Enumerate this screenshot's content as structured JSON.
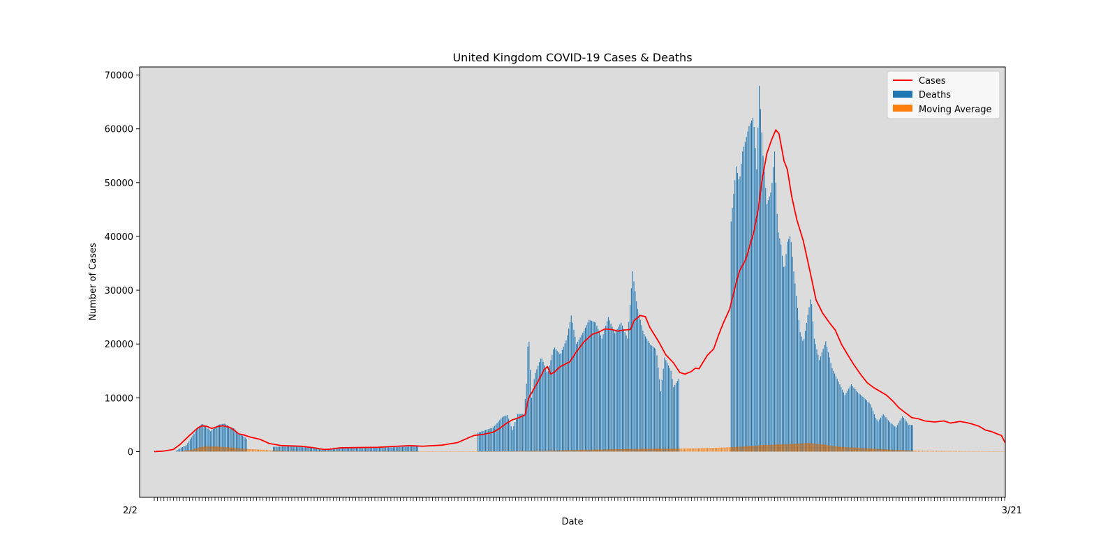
{
  "chart_data": {
    "type": "bar",
    "title": "United Kingdom COVID-19 Cases & Deaths",
    "xlabel": "Date",
    "ylabel": "Number of Cases",
    "ylim": [
      -8500,
      71500
    ],
    "yticks": [
      0,
      10000,
      20000,
      30000,
      40000,
      50000,
      60000,
      70000
    ],
    "x_tick_labels_visible": [
      "2/2",
      "3/21"
    ],
    "grid": false,
    "legend_position": "top-right",
    "background_color": "#dcdcdc",
    "series": [
      {
        "name": "Cases",
        "kind": "line",
        "color": "#ff0000",
        "keypoints": [
          [
            0,
            0
          ],
          [
            15,
            100
          ],
          [
            30,
            400
          ],
          [
            40,
            1300
          ],
          [
            55,
            3000
          ],
          [
            68,
            4400
          ],
          [
            75,
            4800
          ],
          [
            82,
            4700
          ],
          [
            90,
            4300
          ],
          [
            100,
            4700
          ],
          [
            108,
            4800
          ],
          [
            118,
            4500
          ],
          [
            125,
            4000
          ],
          [
            132,
            3300
          ],
          [
            140,
            3100
          ],
          [
            150,
            2700
          ],
          [
            165,
            2300
          ],
          [
            180,
            1500
          ],
          [
            200,
            1100
          ],
          [
            230,
            1000
          ],
          [
            250,
            700
          ],
          [
            265,
            400
          ],
          [
            275,
            450
          ],
          [
            290,
            700
          ],
          [
            315,
            750
          ],
          [
            350,
            800
          ],
          [
            380,
            1000
          ],
          [
            400,
            1100
          ],
          [
            420,
            1000
          ],
          [
            450,
            1200
          ],
          [
            475,
            1700
          ],
          [
            490,
            2500
          ],
          [
            500,
            3000
          ],
          [
            515,
            3200
          ],
          [
            530,
            3600
          ],
          [
            540,
            4300
          ],
          [
            550,
            5200
          ],
          [
            560,
            5900
          ],
          [
            570,
            6300
          ],
          [
            580,
            6800
          ],
          [
            585,
            9800
          ],
          [
            600,
            13000
          ],
          [
            610,
            15300
          ],
          [
            615,
            15800
          ],
          [
            620,
            14400
          ],
          [
            625,
            14700
          ],
          [
            635,
            15800
          ],
          [
            650,
            16700
          ],
          [
            660,
            18500
          ],
          [
            672,
            20400
          ],
          [
            685,
            21800
          ],
          [
            695,
            22200
          ],
          [
            705,
            22800
          ],
          [
            715,
            22700
          ],
          [
            725,
            22400
          ],
          [
            735,
            22600
          ],
          [
            745,
            22700
          ],
          [
            750,
            24300
          ],
          [
            760,
            25300
          ],
          [
            768,
            25100
          ],
          [
            775,
            23100
          ],
          [
            790,
            20200
          ],
          [
            800,
            18000
          ],
          [
            812,
            16500
          ],
          [
            822,
            14700
          ],
          [
            830,
            14400
          ],
          [
            840,
            14900
          ],
          [
            846,
            15500
          ],
          [
            852,
            15400
          ],
          [
            865,
            17900
          ],
          [
            875,
            19100
          ],
          [
            882,
            21500
          ],
          [
            890,
            23900
          ],
          [
            900,
            26500
          ],
          [
            908,
            30400
          ],
          [
            915,
            33500
          ],
          [
            925,
            35700
          ],
          [
            932,
            38500
          ],
          [
            938,
            41000
          ],
          [
            945,
            45300
          ],
          [
            950,
            50100
          ],
          [
            958,
            55400
          ],
          [
            965,
            57800
          ],
          [
            972,
            59800
          ],
          [
            977,
            59100
          ],
          [
            985,
            54000
          ],
          [
            990,
            52500
          ],
          [
            997,
            47400
          ],
          [
            1005,
            43100
          ],
          [
            1015,
            39200
          ],
          [
            1025,
            33800
          ],
          [
            1035,
            28200
          ],
          [
            1045,
            25800
          ],
          [
            1055,
            24100
          ],
          [
            1065,
            22600
          ],
          [
            1075,
            19900
          ],
          [
            1085,
            17900
          ],
          [
            1095,
            16000
          ],
          [
            1105,
            14300
          ],
          [
            1115,
            12800
          ],
          [
            1125,
            11900
          ],
          [
            1135,
            11200
          ],
          [
            1145,
            10500
          ],
          [
            1155,
            9400
          ],
          [
            1165,
            8100
          ],
          [
            1175,
            7200
          ],
          [
            1185,
            6300
          ],
          [
            1195,
            6100
          ],
          [
            1205,
            5700
          ],
          [
            1220,
            5500
          ],
          [
            1235,
            5700
          ],
          [
            1245,
            5300
          ],
          [
            1260,
            5600
          ],
          [
            1270,
            5400
          ],
          [
            1280,
            5100
          ],
          [
            1290,
            4700
          ],
          [
            1300,
            4000
          ],
          [
            1310,
            3700
          ],
          [
            1320,
            3200
          ],
          [
            1325,
            3000
          ],
          [
            1331,
            1600
          ]
        ]
      },
      {
        "name": "Deaths",
        "kind": "bar",
        "color": "#1f77b4",
        "keypoints": [
          [
            32,
            0
          ],
          [
            40,
            600
          ],
          [
            50,
            1200
          ],
          [
            60,
            3000
          ],
          [
            68,
            4500
          ],
          [
            75,
            5200
          ],
          [
            80,
            4700
          ],
          [
            88,
            3800
          ],
          [
            95,
            4500
          ],
          [
            100,
            5000
          ],
          [
            110,
            5200
          ],
          [
            118,
            4600
          ],
          [
            125,
            4300
          ],
          [
            130,
            3300
          ],
          [
            138,
            3000
          ],
          [
            145,
            2300
          ],
          [
            146,
            0
          ],
          [
            185,
            0
          ],
          [
            186,
            900
          ],
          [
            230,
            1000
          ],
          [
            265,
            300
          ],
          [
            280,
            600
          ],
          [
            350,
            700
          ],
          [
            390,
            900
          ],
          [
            412,
            1000
          ],
          [
            413,
            0
          ],
          [
            474,
            0
          ],
          [
            475,
            50
          ],
          [
            476,
            0
          ],
          [
            505,
            0
          ],
          [
            506,
            3500
          ],
          [
            530,
            4500
          ],
          [
            545,
            6500
          ],
          [
            552,
            6800
          ],
          [
            560,
            4000
          ],
          [
            568,
            7000
          ],
          [
            578,
            7000
          ],
          [
            582,
            12600
          ],
          [
            585,
            23000
          ],
          [
            590,
            10000
          ],
          [
            595,
            14300
          ],
          [
            605,
            17600
          ],
          [
            615,
            14500
          ],
          [
            625,
            19500
          ],
          [
            635,
            18000
          ],
          [
            645,
            21000
          ],
          [
            652,
            25300
          ],
          [
            660,
            20000
          ],
          [
            672,
            22500
          ],
          [
            680,
            24500
          ],
          [
            690,
            24000
          ],
          [
            700,
            21000
          ],
          [
            710,
            25000
          ],
          [
            720,
            22000
          ],
          [
            730,
            24000
          ],
          [
            740,
            21000
          ],
          [
            748,
            33500
          ],
          [
            755,
            27000
          ],
          [
            765,
            22000
          ],
          [
            775,
            20000
          ],
          [
            785,
            19000
          ],
          [
            792,
            11200
          ],
          [
            798,
            17500
          ],
          [
            808,
            15000
          ],
          [
            812,
            12000
          ],
          [
            820,
            13500
          ],
          [
            821,
            0
          ],
          [
            900,
            0
          ],
          [
            901,
            41500
          ],
          [
            910,
            53000
          ],
          [
            915,
            50000
          ],
          [
            920,
            55800
          ],
          [
            925,
            58000
          ],
          [
            930,
            60500
          ],
          [
            937,
            62300
          ],
          [
            942,
            52500
          ],
          [
            946,
            68000
          ],
          [
            952,
            55000
          ],
          [
            958,
            46000
          ],
          [
            965,
            48500
          ],
          [
            970,
            55800
          ],
          [
            975,
            41300
          ],
          [
            980,
            38500
          ],
          [
            985,
            33300
          ],
          [
            990,
            39000
          ],
          [
            995,
            40300
          ],
          [
            1000,
            33500
          ],
          [
            1010,
            22200
          ],
          [
            1015,
            20200
          ],
          [
            1022,
            25400
          ],
          [
            1027,
            29000
          ],
          [
            1032,
            21000
          ],
          [
            1040,
            17000
          ],
          [
            1050,
            20500
          ],
          [
            1060,
            15500
          ],
          [
            1070,
            13000
          ],
          [
            1080,
            10500
          ],
          [
            1090,
            12500
          ],
          [
            1100,
            11000
          ],
          [
            1110,
            10000
          ],
          [
            1120,
            8800
          ],
          [
            1128,
            6300
          ],
          [
            1132,
            5600
          ],
          [
            1140,
            7000
          ],
          [
            1150,
            5500
          ],
          [
            1160,
            4500
          ],
          [
            1170,
            6600
          ],
          [
            1180,
            5000
          ],
          [
            1187,
            4900
          ],
          [
            1188,
            0
          ]
        ]
      },
      {
        "name": "Moving Average",
        "kind": "bar",
        "color": "#ff7f0e",
        "keypoints": [
          [
            40,
            60
          ],
          [
            55,
            300
          ],
          [
            70,
            800
          ],
          [
            80,
            1000
          ],
          [
            95,
            950
          ],
          [
            110,
            850
          ],
          [
            125,
            700
          ],
          [
            140,
            500
          ],
          [
            160,
            400
          ],
          [
            185,
            200
          ],
          [
            210,
            100
          ],
          [
            260,
            50
          ],
          [
            300,
            40
          ],
          [
            350,
            20
          ],
          [
            420,
            10
          ],
          [
            520,
            20
          ],
          [
            600,
            150
          ],
          [
            700,
            400
          ],
          [
            780,
            550
          ],
          [
            820,
            550
          ],
          [
            860,
            650
          ],
          [
            900,
            800
          ],
          [
            950,
            1200
          ],
          [
            990,
            1400
          ],
          [
            1020,
            1600
          ],
          [
            1040,
            1400
          ],
          [
            1070,
            900
          ],
          [
            1100,
            700
          ],
          [
            1130,
            500
          ],
          [
            1160,
            300
          ],
          [
            1200,
            150
          ],
          [
            1250,
            100
          ],
          [
            1300,
            50
          ],
          [
            1331,
            30
          ]
        ]
      }
    ]
  }
}
